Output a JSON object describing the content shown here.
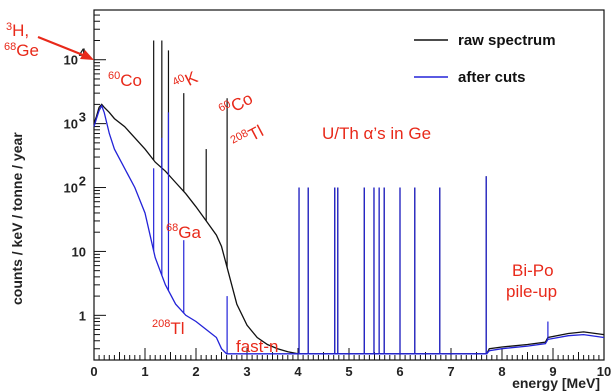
{
  "chart_data": {
    "type": "line",
    "xlabel": "energy [MeV]",
    "ylabel": "counts / keV / tonne / year",
    "xlim": [
      0,
      10
    ],
    "ylim": [
      0.2,
      60000
    ],
    "y_scale": "log",
    "grid": false,
    "legend_position": "top-right",
    "x_ticks": [
      "0",
      "1",
      "2",
      "3",
      "4",
      "5",
      "6",
      "7",
      "8",
      "9",
      "10"
    ],
    "y_ticks": [
      {
        "value": 1,
        "label": "1"
      },
      {
        "value": 10,
        "label": "10"
      },
      {
        "value": 100,
        "label": "10",
        "exp": "2"
      },
      {
        "value": 1000,
        "label": "10",
        "exp": "3"
      },
      {
        "value": 10000,
        "label": "10",
        "exp": "4"
      }
    ],
    "series": [
      {
        "name": "raw spectrum",
        "color": "#111111",
        "x": [
          0.0,
          0.05,
          0.1,
          0.15,
          0.2,
          0.3,
          0.4,
          0.6,
          0.8,
          1.0,
          1.2,
          1.4,
          1.6,
          1.8,
          2.0,
          2.2,
          2.4,
          2.5,
          2.6,
          2.7,
          2.8,
          3.0,
          3.2,
          3.4,
          3.6,
          3.8,
          4.0,
          5.0,
          6.0,
          7.0,
          7.7,
          7.75,
          8.0,
          8.5,
          8.85,
          8.9,
          9.3,
          9.6,
          10.0
        ],
        "y": [
          1000,
          1300,
          1800,
          2000,
          1800,
          1500,
          1200,
          900,
          600,
          400,
          250,
          180,
          120,
          80,
          50,
          30,
          18,
          12,
          6,
          3,
          1.5,
          0.7,
          0.45,
          0.35,
          0.3,
          0.27,
          0.25,
          0.25,
          0.25,
          0.25,
          0.25,
          0.3,
          0.32,
          0.35,
          0.38,
          0.45,
          0.52,
          0.55,
          0.5
        ],
        "peaks": [
          {
            "x": 1.17,
            "y": 20000
          },
          {
            "x": 1.33,
            "y": 20000
          },
          {
            "x": 1.46,
            "y": 14000
          },
          {
            "x": 1.76,
            "y": 3000
          },
          {
            "x": 2.2,
            "y": 400
          },
          {
            "x": 2.61,
            "y": 2500
          },
          {
            "x": 4.02,
            "y": 100
          },
          {
            "x": 4.2,
            "y": 100
          },
          {
            "x": 4.72,
            "y": 100
          },
          {
            "x": 4.78,
            "y": 100
          },
          {
            "x": 5.3,
            "y": 100
          },
          {
            "x": 5.49,
            "y": 100
          },
          {
            "x": 5.59,
            "y": 100
          },
          {
            "x": 5.69,
            "y": 100
          },
          {
            "x": 6.0,
            "y": 100
          },
          {
            "x": 6.29,
            "y": 100
          },
          {
            "x": 6.78,
            "y": 100
          },
          {
            "x": 7.69,
            "y": 150
          }
        ]
      },
      {
        "name": "after cuts",
        "color": "#2323d8",
        "x": [
          0.0,
          0.05,
          0.1,
          0.15,
          0.2,
          0.3,
          0.4,
          0.6,
          0.8,
          1.0,
          1.2,
          1.4,
          1.6,
          1.8,
          2.0,
          2.2,
          2.4,
          2.5,
          2.6,
          2.8,
          3.0,
          4.0,
          5.0,
          6.0,
          7.0,
          7.7,
          7.75,
          8.0,
          8.5,
          8.85,
          8.9,
          9.3,
          9.6,
          10.0
        ],
        "y": [
          900,
          1200,
          1600,
          1900,
          1500,
          700,
          400,
          200,
          100,
          40,
          8,
          3,
          1.5,
          1,
          0.8,
          0.6,
          0.45,
          0.3,
          0.25,
          0.25,
          0.25,
          0.25,
          0.25,
          0.25,
          0.25,
          0.25,
          0.28,
          0.3,
          0.33,
          0.36,
          0.42,
          0.48,
          0.5,
          0.45
        ],
        "peaks": [
          {
            "x": 1.17,
            "y": 200
          },
          {
            "x": 1.33,
            "y": 600
          },
          {
            "x": 1.46,
            "y": 1500
          },
          {
            "x": 1.76,
            "y": 15
          },
          {
            "x": 2.61,
            "y": 2
          },
          {
            "x": 4.02,
            "y": 100
          },
          {
            "x": 4.2,
            "y": 100
          },
          {
            "x": 4.72,
            "y": 100
          },
          {
            "x": 4.78,
            "y": 100
          },
          {
            "x": 5.3,
            "y": 100
          },
          {
            "x": 5.49,
            "y": 100
          },
          {
            "x": 5.59,
            "y": 100
          },
          {
            "x": 5.69,
            "y": 100
          },
          {
            "x": 6.0,
            "y": 100
          },
          {
            "x": 6.29,
            "y": 100
          },
          {
            "x": 6.78,
            "y": 100
          },
          {
            "x": 7.69,
            "y": 150
          },
          {
            "x": 8.9,
            "y": 0.8
          }
        ]
      }
    ],
    "annotations": [
      {
        "sup": "3",
        "text": "H,",
        "color": "#e8291a"
      },
      {
        "sup": "68",
        "text": "Ge",
        "color": "#e8291a"
      },
      {
        "sup": "60",
        "text": "Co",
        "color": "#e8291a"
      },
      {
        "sup": "40",
        "text": "K",
        "color": "#e8291a"
      },
      {
        "sup": "60",
        "text": "Co",
        "color": "#e8291a"
      },
      {
        "sup": "208",
        "text": "Tl",
        "color": "#e8291a"
      },
      {
        "sup": "",
        "text": "U/Th α’s in Ge",
        "color": "#e8291a"
      },
      {
        "sup": "68",
        "text": "Ga",
        "color": "#e8291a"
      },
      {
        "sup": "208",
        "text": "Tl",
        "color": "#e8291a"
      },
      {
        "sup": "",
        "text": "fast-n",
        "color": "#e8291a"
      },
      {
        "sup": "",
        "text": "Bi-Po",
        "color": "#e8291a"
      },
      {
        "sup": "",
        "text": "pile-up",
        "color": "#e8291a"
      }
    ]
  }
}
